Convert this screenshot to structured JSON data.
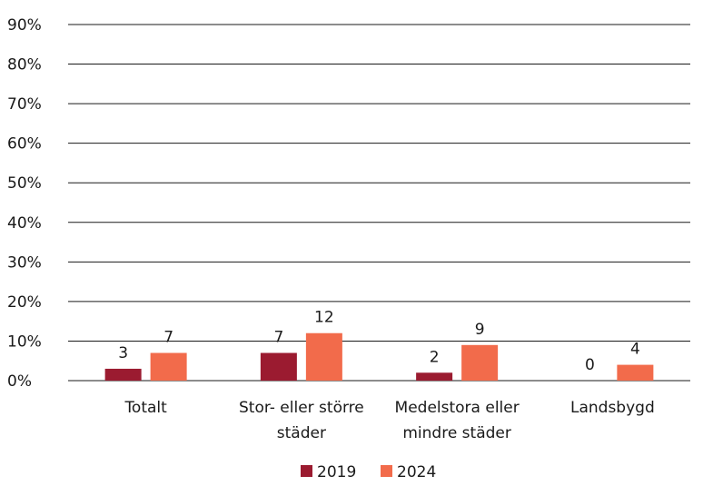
{
  "chart_data": {
    "type": "bar",
    "categories": [
      [
        "Totalt"
      ],
      [
        "Stor- eller större",
        "städer"
      ],
      [
        "Medelstora eller",
        "mindre städer"
      ],
      [
        "Landsbygd"
      ]
    ],
    "series": [
      {
        "name": "2019",
        "color": "#9b1b30",
        "values": [
          3,
          7,
          2,
          0
        ]
      },
      {
        "name": "2024",
        "color": "#f26b4b",
        "values": [
          7,
          12,
          9,
          4
        ]
      }
    ],
    "data_labels": [
      [
        "3",
        "7",
        "2",
        "0"
      ],
      [
        "7",
        "12",
        "9",
        "4"
      ]
    ],
    "yticks": [
      "0%",
      "10%",
      "20%",
      "30%",
      "40%",
      "50%",
      "60%",
      "70%",
      "80%",
      "90%"
    ],
    "ylim": [
      0,
      90
    ],
    "grid": true,
    "legend": "bottom"
  }
}
